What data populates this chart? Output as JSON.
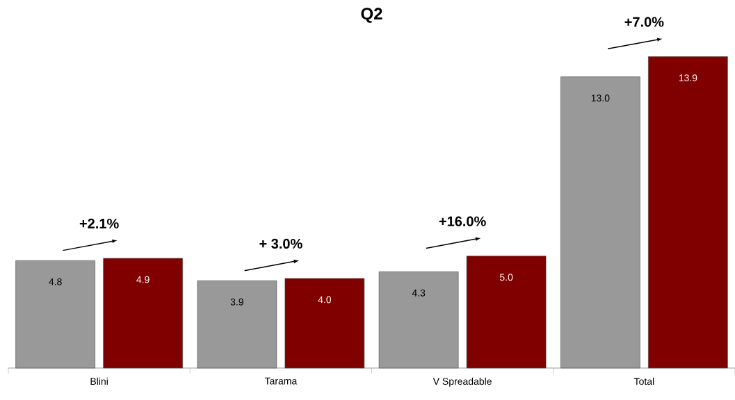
{
  "chart_data": {
    "type": "bar",
    "title": "Q2",
    "categories": [
      "Blini",
      "Tarama",
      "V Spreadable",
      "Total"
    ],
    "series": [
      {
        "color": "#999999",
        "values": [
          4.8,
          3.9,
          4.3,
          13.0
        ],
        "value_labels": [
          "4.8",
          "3.9",
          "4.3",
          "13.0"
        ]
      },
      {
        "color": "#800000",
        "values": [
          4.9,
          4.0,
          5.0,
          13.9
        ],
        "value_labels": [
          "4.9",
          "4.0",
          "5.0",
          "13.9"
        ]
      }
    ],
    "tick_labels": "x",
    "annotations": [
      "+2.1%",
      "+ 3.0%",
      "+16.0%",
      "+7.0%"
    ]
  }
}
